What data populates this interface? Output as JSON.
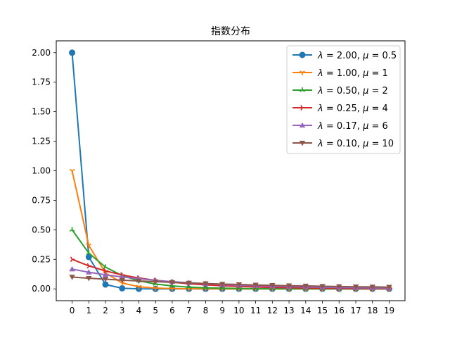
{
  "chart_data": {
    "type": "line",
    "title": "指数分布",
    "xlabel": "",
    "ylabel": "",
    "xlim": [
      -0.95,
      19.95
    ],
    "ylim": [
      -0.1,
      2.1
    ],
    "x_ticks": [
      0,
      1,
      2,
      3,
      4,
      5,
      6,
      7,
      8,
      9,
      10,
      11,
      12,
      13,
      14,
      15,
      16,
      17,
      18,
      19
    ],
    "y_ticks": [
      0.0,
      0.25,
      0.5,
      0.75,
      1.0,
      1.25,
      1.5,
      1.75,
      2.0
    ],
    "y_tick_labels": [
      "0.00",
      "0.25",
      "0.50",
      "0.75",
      "1.00",
      "1.25",
      "1.50",
      "1.75",
      "2.00"
    ],
    "grid": false,
    "legend_position": "upper-right",
    "x": [
      0,
      1,
      2,
      3,
      4,
      5,
      6,
      7,
      8,
      9,
      10,
      11,
      12,
      13,
      14,
      15,
      16,
      17,
      18,
      19
    ],
    "series": [
      {
        "name": "λ = 2.00, μ = 0.5",
        "lambda": "λ",
        "eq1": " = 2.00, ",
        "mu": "μ",
        "eq2": " = 0.5",
        "color": "#1f77b4",
        "marker": "circle",
        "values": [
          2.0,
          0.27,
          0.037,
          0.005,
          0.0007,
          0.0001,
          0,
          0,
          0,
          0,
          0,
          0,
          0,
          0,
          0,
          0,
          0,
          0,
          0,
          0
        ]
      },
      {
        "name": "λ = 1.00, μ = 1",
        "lambda": "λ",
        "eq1": " = 1.00, ",
        "mu": "μ",
        "eq2": " = 1",
        "color": "#ff7f0e",
        "marker": "tri_down",
        "values": [
          1.0,
          0.368,
          0.135,
          0.05,
          0.018,
          0.0067,
          0.0025,
          0.0009,
          0.0003,
          0.0001,
          0,
          0,
          0,
          0,
          0,
          0,
          0,
          0,
          0,
          0
        ]
      },
      {
        "name": "λ = 0.50, μ = 2",
        "lambda": "λ",
        "eq1": " = 0.50, ",
        "mu": "μ",
        "eq2": " = 2",
        "color": "#2ca02c",
        "marker": "tri_up",
        "values": [
          0.5,
          0.303,
          0.184,
          0.112,
          0.068,
          0.041,
          0.025,
          0.015,
          0.009,
          0.0056,
          0.0034,
          0.002,
          0.0012,
          0.0008,
          0.0005,
          0.0003,
          0.0002,
          0.0001,
          0.0001,
          0.0
        ]
      },
      {
        "name": "λ = 0.25, μ = 4",
        "lambda": "λ",
        "eq1": " = 0.25, ",
        "mu": "μ",
        "eq2": " = 4",
        "color": "#d62728",
        "marker": "tri_right",
        "values": [
          0.25,
          0.195,
          0.152,
          0.118,
          0.092,
          0.072,
          0.056,
          0.043,
          0.034,
          0.026,
          0.021,
          0.016,
          0.012,
          0.01,
          0.0075,
          0.0059,
          0.0046,
          0.0036,
          0.0028,
          0.0022
        ]
      },
      {
        "name": "λ = 0.17, μ = 6",
        "lambda": "λ",
        "eq1": " = 0.17, ",
        "mu": "μ",
        "eq2": " = 6",
        "color": "#9467bd",
        "marker": "triangle_up",
        "values": [
          0.167,
          0.141,
          0.119,
          0.101,
          0.086,
          0.072,
          0.061,
          0.052,
          0.044,
          0.037,
          0.031,
          0.027,
          0.022,
          0.019,
          0.016,
          0.014,
          0.012,
          0.01,
          0.0083,
          0.007
        ]
      },
      {
        "name": "λ = 0.10, μ = 10",
        "lambda": "λ",
        "eq1": " = 0.10, ",
        "mu": "μ",
        "eq2": " = 10",
        "color": "#8c564b",
        "marker": "triangle_down",
        "values": [
          0.1,
          0.09,
          0.082,
          0.074,
          0.067,
          0.061,
          0.055,
          0.05,
          0.045,
          0.041,
          0.037,
          0.033,
          0.03,
          0.027,
          0.025,
          0.022,
          0.02,
          0.018,
          0.017,
          0.015
        ]
      }
    ]
  }
}
